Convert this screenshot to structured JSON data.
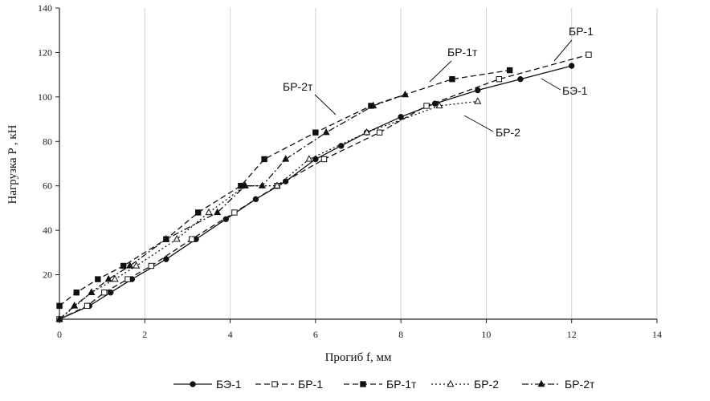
{
  "chart_data": {
    "type": "line",
    "xlabel": "Прогиб f, мм",
    "ylabel": "Нагрузка P , кН",
    "xlim": [
      0,
      14
    ],
    "ylim": [
      0,
      140
    ],
    "xticks": [
      0,
      2,
      4,
      6,
      8,
      10,
      12,
      14
    ],
    "yticks": [
      20,
      40,
      60,
      80,
      100,
      120,
      140
    ],
    "grid": "vertical",
    "legend_position": "bottom",
    "series": [
      {
        "name": "БЭ-1",
        "marker": "circle-filled",
        "dash": "solid",
        "x": [
          0,
          0.7,
          1.2,
          1.7,
          2.5,
          3.2,
          3.9,
          4.6,
          5.3,
          6.0,
          6.6,
          7.2,
          8.0,
          8.8,
          9.8,
          10.8,
          12.0
        ],
        "y": [
          0,
          6,
          12,
          18,
          27,
          36,
          45,
          54,
          62,
          72,
          78,
          84,
          91,
          97,
          103,
          108,
          114
        ]
      },
      {
        "name": "БР-1",
        "marker": "square-open",
        "dash": "dash",
        "x": [
          0,
          0.65,
          1.05,
          1.6,
          2.15,
          3.1,
          4.1,
          5.1,
          6.2,
          7.5,
          8.6,
          10.3,
          12.4
        ],
        "y": [
          0,
          6,
          12,
          18,
          24,
          36,
          48,
          60,
          72,
          84,
          96,
          108,
          119
        ]
      },
      {
        "name": "БР-1т",
        "marker": "square-filled",
        "dash": "dash",
        "x": [
          0,
          0.4,
          0.9,
          1.5,
          2.5,
          3.25,
          4.25,
          4.8,
          6.0,
          7.3,
          9.2,
          10.55
        ],
        "y": [
          6,
          12,
          18,
          24,
          36,
          48,
          60,
          72,
          84,
          96,
          108,
          112
        ]
      },
      {
        "name": "БР-2",
        "marker": "triangle-open",
        "dash": "dot",
        "x": [
          0,
          0.75,
          1.3,
          1.8,
          2.75,
          3.5,
          4.35,
          5.1,
          5.85,
          7.2,
          8.9,
          9.8
        ],
        "y": [
          0,
          12,
          18,
          24,
          36,
          48,
          60,
          60,
          72,
          84,
          96,
          98
        ]
      },
      {
        "name": "БР-2т",
        "marker": "triangle-filled",
        "dash": "dashdot",
        "x": [
          0,
          0.35,
          0.75,
          1.15,
          1.65,
          2.5,
          3.7,
          4.35,
          4.75,
          5.3,
          6.25,
          7.35,
          8.1
        ],
        "y": [
          0,
          6,
          12,
          18,
          24,
          36,
          48,
          60,
          60,
          72,
          84,
          96,
          101
        ]
      }
    ],
    "annotations": [
      "БР-1",
      "БР-1т",
      "БР-2т",
      "БЭ-1",
      "БР-2"
    ]
  }
}
